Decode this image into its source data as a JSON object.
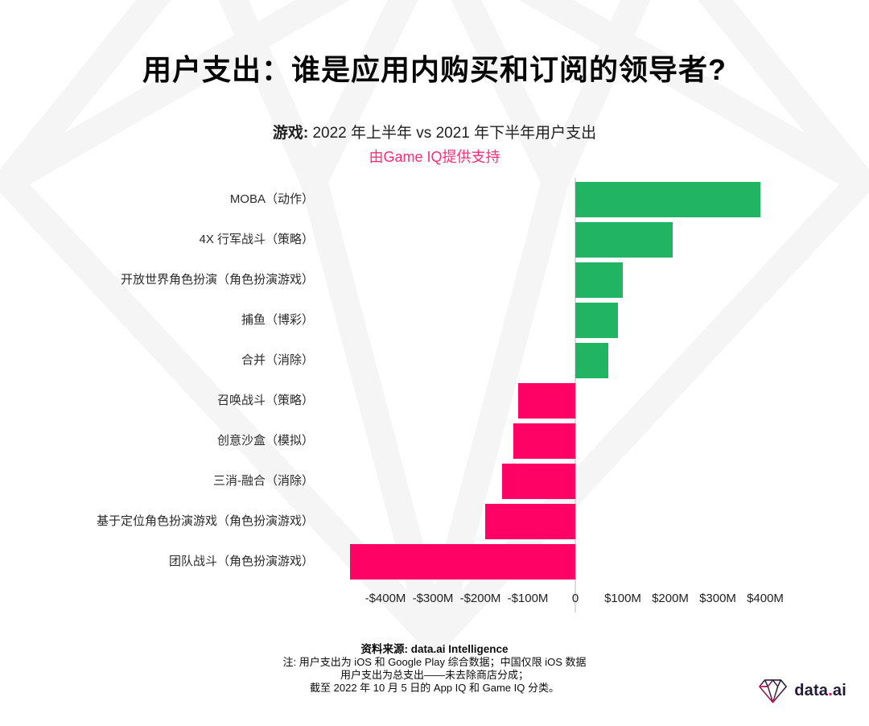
{
  "header": {
    "title": "用户支出：谁是应用内购买和订阅的领导者?"
  },
  "subtitle": {
    "bold": "游戏:",
    "rest": " 2022 年上半年 vs 2021 年下半年用户支出",
    "powered_by": "由Game IQ提供支持",
    "powered_color": "#ff2c77"
  },
  "chart_data": {
    "type": "bar",
    "orientation": "horizontal",
    "title": "游戏: 2022 年上半年 vs 2021 年下半年用户支出",
    "unit": "USD, millions (change in user spending)",
    "categories": [
      "MOBA（动作）",
      "4X 行军战斗（策略）",
      "开放世界角色扮演（角色扮演游戏）",
      "捕鱼（博彩）",
      "合并（消除）",
      "召唤战斗（策略）",
      "创意沙盒（模拟）",
      "三消-融合（消除）",
      "基于定位角色扮演游戏（角色扮演游戏）",
      "团队战斗（角色扮演游戏）"
    ],
    "values": [
      390,
      205,
      100,
      90,
      70,
      -120,
      -130,
      -155,
      -190,
      -475
    ],
    "xlim": [
      -500,
      500
    ],
    "x_ticks": [
      -400,
      -300,
      -200,
      -100,
      0,
      100,
      200,
      300,
      400
    ],
    "x_tick_labels": [
      "-$400M",
      "-$300M",
      "-$200M",
      "-$100M",
      "0",
      "$100M",
      "$200M",
      "$300M",
      "$400M"
    ],
    "positive_color": "#21b463",
    "negative_color": "#ff0266",
    "grid": false,
    "legend": "none"
  },
  "footer": {
    "source_bold": "资料来源: data.ai Intelligence",
    "note_line1": "注: 用户支出为 iOS 和 Google Play 综合数据；中国仅限 iOS 数据",
    "note_line2": "用户支出为总支出——未去除商店分成；",
    "note_line3": "截至 2022 年 10 月 5 日的 App IQ 和 Game IQ 分类。"
  },
  "logo": {
    "part1": "data",
    "dot": ".",
    "part2": "ai",
    "dot_color": "#f20d69"
  }
}
